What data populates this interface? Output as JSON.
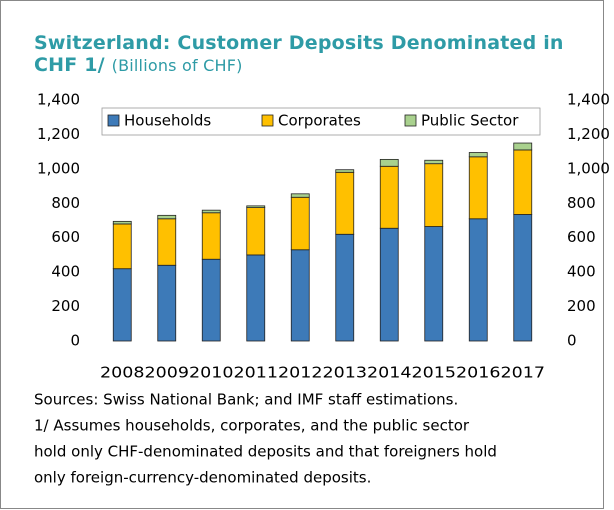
{
  "chart_data": {
    "type": "stacked_bar",
    "title": "Switzerland:  Customer Deposits Denominated in CHF 1/",
    "subtitle": "(Billions of CHF)",
    "categories": [
      "2008",
      "2009",
      "2010",
      "2011",
      "2012",
      "2013",
      "2014",
      "2015",
      "2016",
      "2017"
    ],
    "series": [
      {
        "name": "Households",
        "color": "#3d7ab8",
        "values": [
          420,
          440,
          475,
          500,
          530,
          620,
          655,
          665,
          710,
          735
        ]
      },
      {
        "name": "Corporates",
        "color": "#ffc000",
        "values": [
          260,
          270,
          270,
          275,
          305,
          360,
          360,
          365,
          360,
          375
        ]
      },
      {
        "name": "Public Sector",
        "color": "#a9d18e",
        "values": [
          15,
          20,
          15,
          10,
          20,
          15,
          40,
          20,
          25,
          40
        ]
      }
    ],
    "ylim": [
      0,
      1400
    ],
    "yticks": [
      0,
      200,
      400,
      600,
      800,
      {
        "value": 1000,
        "label": "1,000"
      },
      {
        "value": 1200,
        "label": "1,200"
      },
      {
        "value": 1400,
        "label": "1,400"
      }
    ],
    "y2lim": [
      0,
      1400
    ],
    "y2ticks": [
      0,
      200,
      400,
      600,
      800,
      {
        "value": 1000,
        "label": "1,000"
      },
      {
        "value": 1200,
        "label": "1,200"
      },
      {
        "value": 1400,
        "label": "1,400"
      }
    ],
    "legend": "top",
    "notes": [
      "Sources: Swiss National Bank; and IMF staff estimations.",
      "1/ Assumes households, corporates, and the public sector",
      "hold only CHF-denominated deposits and that foreigners hold",
      "only foreign-currency-denominated deposits."
    ]
  }
}
